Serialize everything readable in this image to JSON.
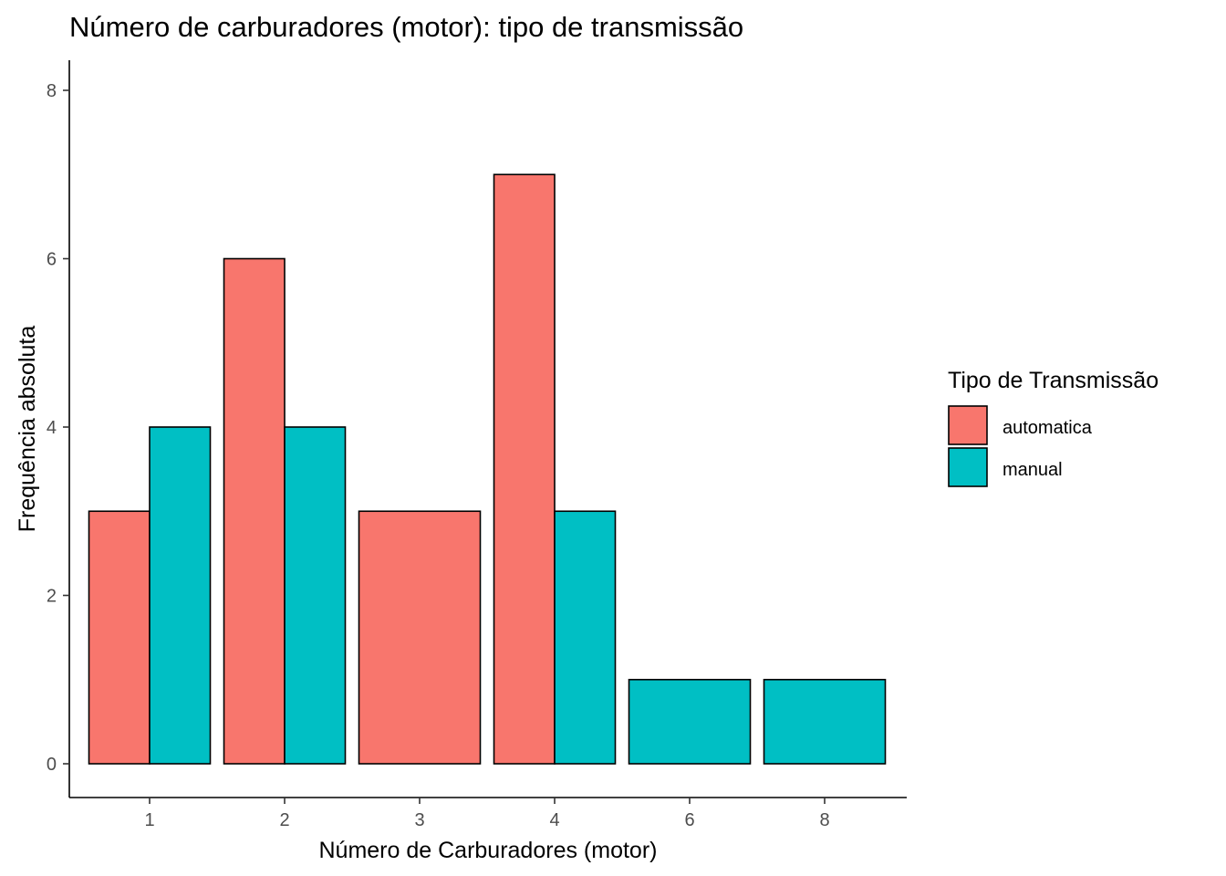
{
  "chart_data": {
    "type": "bar",
    "title": "Número de carburadores (motor): tipo de transmissão",
    "xlabel": "Número de Carburadores (motor)",
    "ylabel": "Frequência absoluta",
    "categories": [
      "1",
      "2",
      "3",
      "4",
      "6",
      "8"
    ],
    "ylim": [
      0,
      8
    ],
    "yticks": [
      0,
      2,
      4,
      6,
      8
    ],
    "grid": false,
    "position": "dodge",
    "series": [
      {
        "name": "automatica",
        "color": "#F8766D",
        "values": [
          3,
          6,
          3,
          7,
          null,
          null
        ]
      },
      {
        "name": "manual",
        "color": "#00BFC4",
        "values": [
          4,
          4,
          null,
          3,
          1,
          1
        ]
      }
    ],
    "legend": {
      "title": "Tipo de Transmissão",
      "placement": "right",
      "entries": [
        "automatica",
        "manual"
      ]
    }
  }
}
